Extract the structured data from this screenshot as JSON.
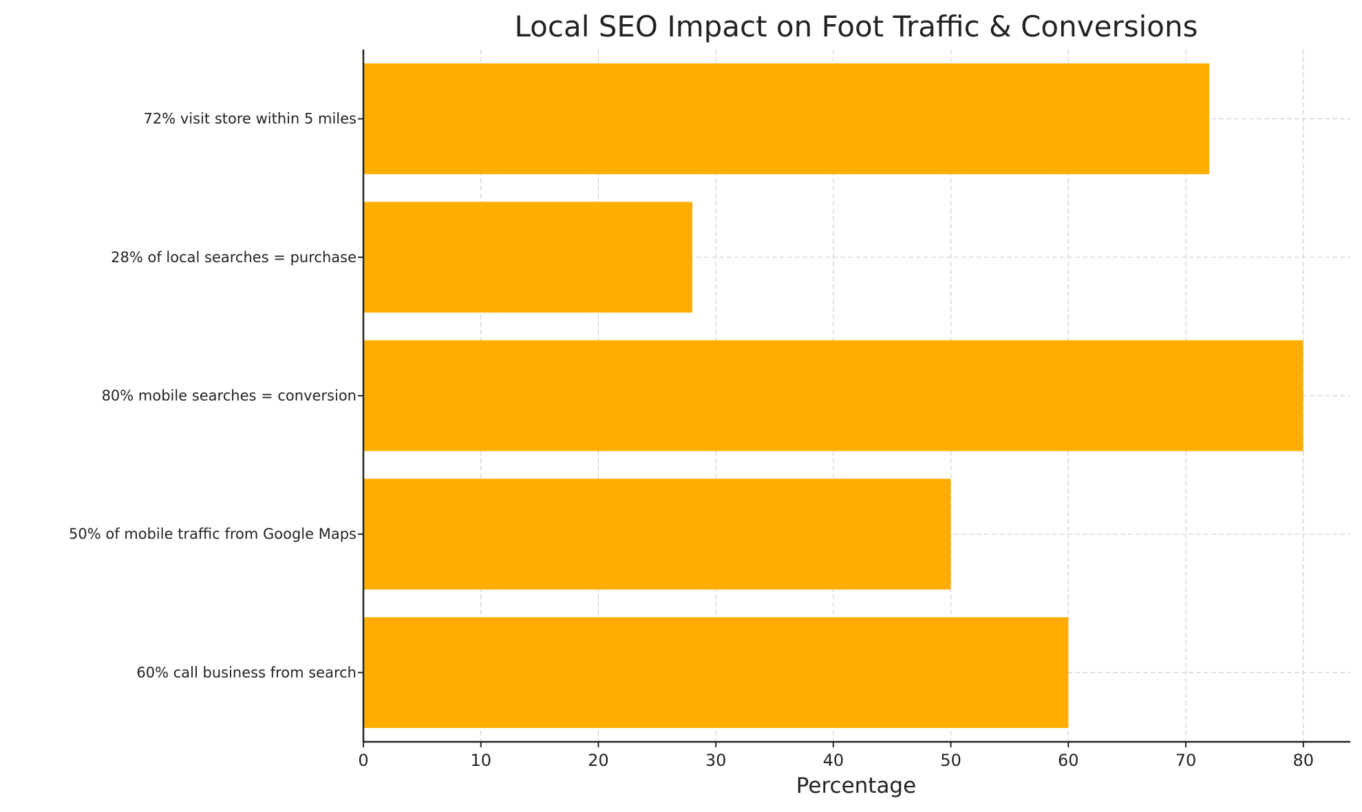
{
  "chart_data": {
    "type": "bar",
    "orientation": "horizontal",
    "title": "Local SEO Impact on Foot Traffic & Conversions",
    "xlabel": "Percentage",
    "ylabel": "",
    "categories": [
      "60% call business from search",
      "50% of mobile traffic from Google Maps",
      "80% mobile searches = conversion",
      "28% of local searches = purchase",
      "72% visit store within 5 miles"
    ],
    "values": [
      60,
      50,
      80,
      28,
      72
    ],
    "xlim": [
      0,
      84
    ],
    "xticks": [
      "0",
      "10",
      "20",
      "30",
      "40",
      "50",
      "60",
      "70",
      "80"
    ],
    "grid": true,
    "grid_style": "dashed",
    "bar_color": "#FFAE00",
    "legend": "none"
  }
}
